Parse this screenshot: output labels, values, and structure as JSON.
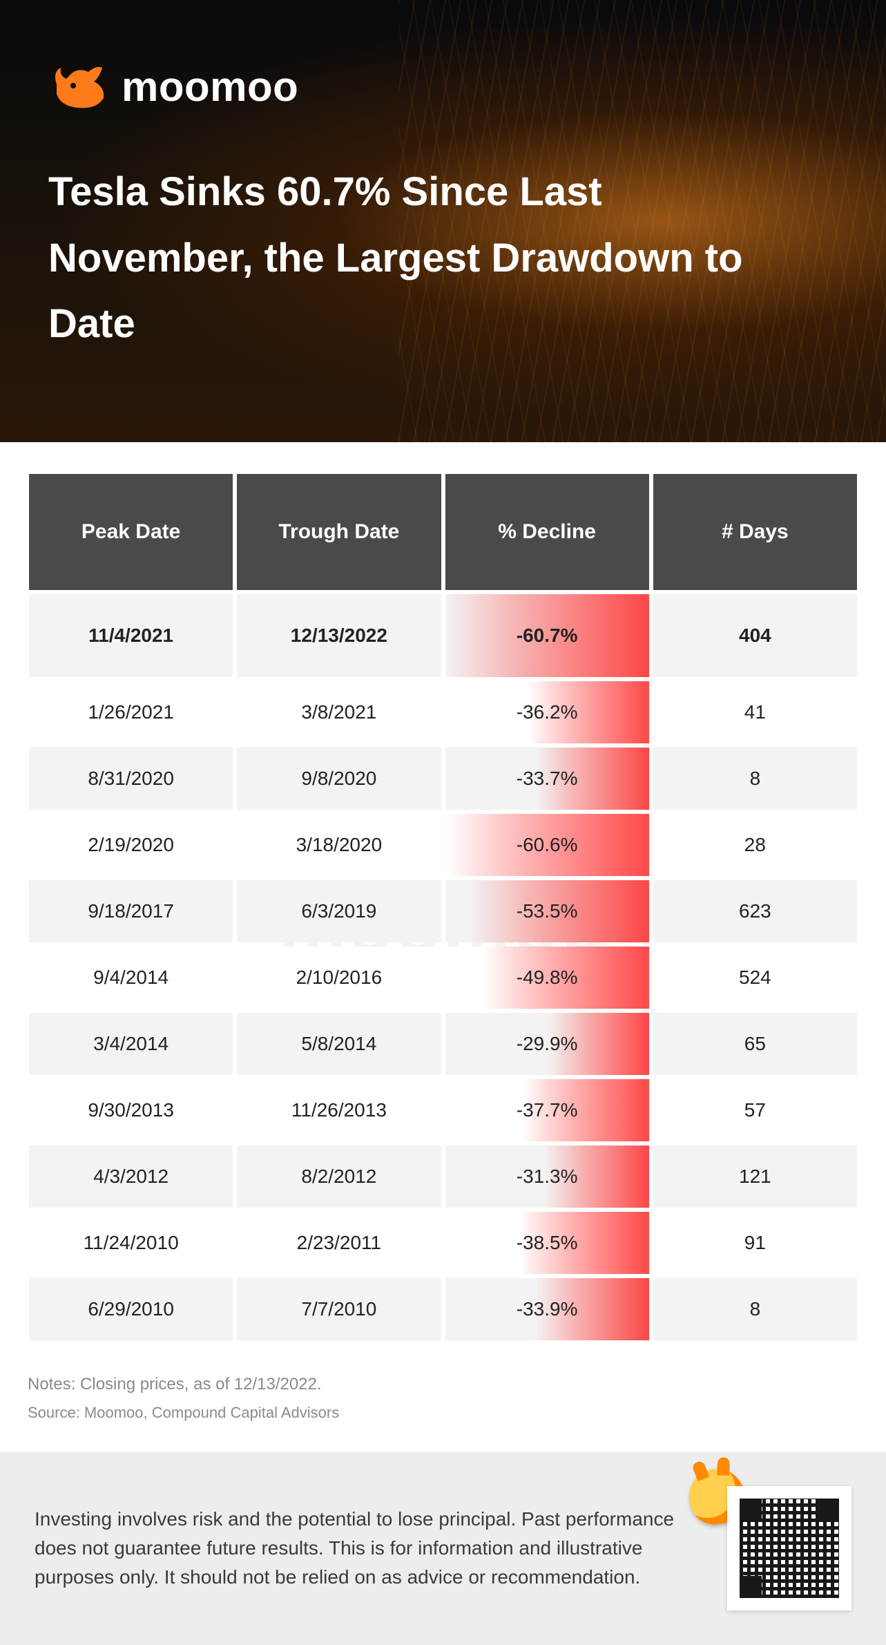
{
  "brand": {
    "name": "moomoo",
    "logo_color": "#ff7a1a",
    "text_color": "#ffffff"
  },
  "hero": {
    "headline": "Tesla Sinks 60.7% Since Last November, the Largest Drawdown to Date",
    "background_dark": "#0a0a0c",
    "background_glow": "#ff8a1e",
    "headline_fontsize": 58,
    "headline_color": "#ffffff"
  },
  "table": {
    "type": "table",
    "header_bg": "#4a4a4a",
    "header_text_color": "#ffffff",
    "header_fontsize": 30,
    "row_even_bg": "#f3f3f3",
    "row_odd_bg": "#ffffff",
    "row_fontsize": 28,
    "row_text_color": "#222222",
    "bar_gradient_start": "rgba(255,60,60,0.0)",
    "bar_gradient_end": "rgba(255,40,40,0.85)",
    "columns": [
      "Peak Date",
      "Trough Date",
      "% Decline",
      "# Days"
    ],
    "decline_bar_max_abs_pct": 60.7,
    "decline_bar_cell_fill_at_max_pct": 100,
    "rows": [
      {
        "peak": "11/4/2021",
        "trough": "12/13/2022",
        "decline_pct": -60.7,
        "decline_label": "-60.7%",
        "days": 404
      },
      {
        "peak": "1/26/2021",
        "trough": "3/8/2021",
        "decline_pct": -36.2,
        "decline_label": "-36.2%",
        "days": 41
      },
      {
        "peak": "8/31/2020",
        "trough": "9/8/2020",
        "decline_pct": -33.7,
        "decline_label": "-33.7%",
        "days": 8
      },
      {
        "peak": "2/19/2020",
        "trough": "3/18/2020",
        "decline_pct": -60.6,
        "decline_label": "-60.6%",
        "days": 28
      },
      {
        "peak": "9/18/2017",
        "trough": "6/3/2019",
        "decline_pct": -53.5,
        "decline_label": "-53.5%",
        "days": 623
      },
      {
        "peak": "9/4/2014",
        "trough": "2/10/2016",
        "decline_pct": -49.8,
        "decline_label": "-49.8%",
        "days": 524
      },
      {
        "peak": "3/4/2014",
        "trough": "5/8/2014",
        "decline_pct": -29.9,
        "decline_label": "-29.9%",
        "days": 65
      },
      {
        "peak": "9/30/2013",
        "trough": "11/26/2013",
        "decline_pct": -37.7,
        "decline_label": "-37.7%",
        "days": 57
      },
      {
        "peak": "4/3/2012",
        "trough": "8/2/2012",
        "decline_pct": -31.3,
        "decline_label": "-31.3%",
        "days": 121
      },
      {
        "peak": "11/24/2010",
        "trough": "2/23/2011",
        "decline_pct": -38.5,
        "decline_label": "-38.5%",
        "days": 91
      },
      {
        "peak": "6/29/2010",
        "trough": "7/7/2010",
        "decline_pct": -33.9,
        "decline_label": "-33.9%",
        "days": 8
      }
    ]
  },
  "notes": {
    "line1": "Notes: Closing prices, as of 12/13/2022.",
    "line2": "Source: Moomoo, Compound Capital Advisors",
    "color": "#8a8a8a",
    "fontsize": 24
  },
  "footer": {
    "disclaimer": "Investing involves risk and the potential to lose principal. Past performance does not guarantee future results. This is for information and illustrative purposes only. It should not be relied on as advice or recommendation.",
    "bg": "#ededed",
    "text_color": "#3a3a3a",
    "fontsize": 28,
    "mascot_colors": {
      "body": "#ffcf4d",
      "accent": "#ff8a00"
    }
  },
  "watermark": {
    "text": "moomoo",
    "color": "rgba(0,0,0,0.05)",
    "fontsize": 110
  }
}
